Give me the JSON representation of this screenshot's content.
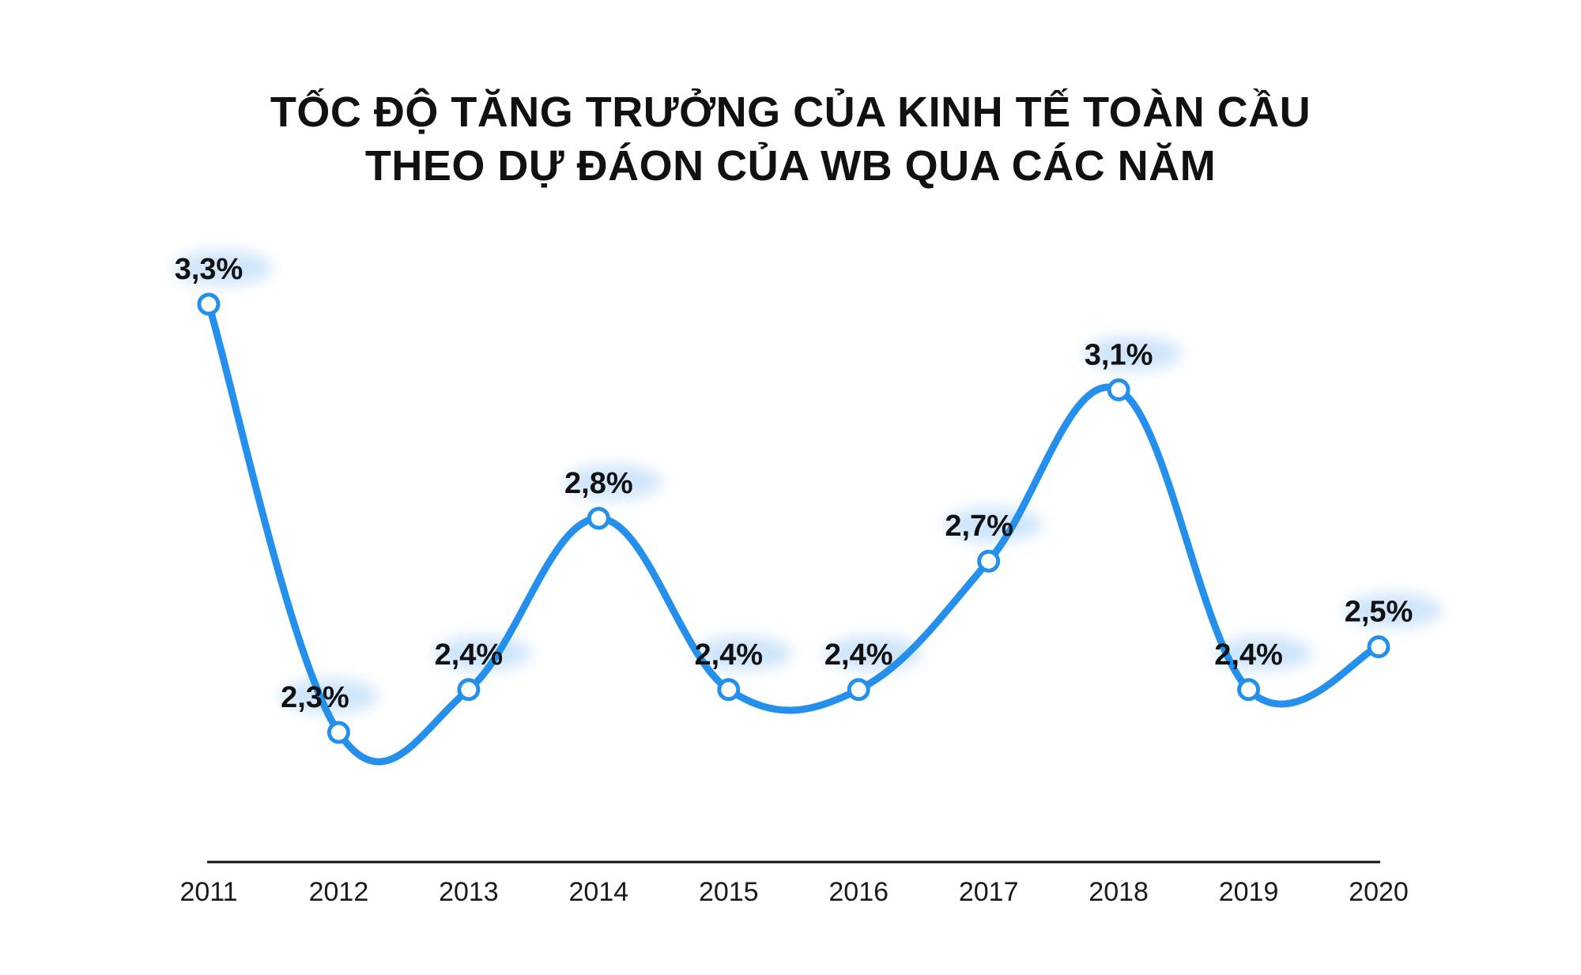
{
  "chart_data": {
    "type": "line",
    "title_line1": "TỐC ĐỘ TĂNG TRƯỞNG CỦA KINH TẾ TOÀN CẦU",
    "title_line2": "THEO DỰ ĐÁON CỦA WB QUA CÁC NĂM",
    "categories": [
      "2011",
      "2012",
      "2013",
      "2014",
      "2015",
      "2016",
      "2017",
      "2018",
      "2019",
      "2020"
    ],
    "values": [
      3.3,
      2.3,
      2.4,
      2.8,
      2.4,
      2.4,
      2.7,
      3.1,
      2.4,
      2.5
    ],
    "labels": [
      "3,3%",
      "2,3%",
      "2,4%",
      "2,8%",
      "2,4%",
      "2,4%",
      "2,7%",
      "3,1%",
      "2,4%",
      "2,5%"
    ],
    "line_color": "#2590EB",
    "smooth": true,
    "grid": false
  }
}
